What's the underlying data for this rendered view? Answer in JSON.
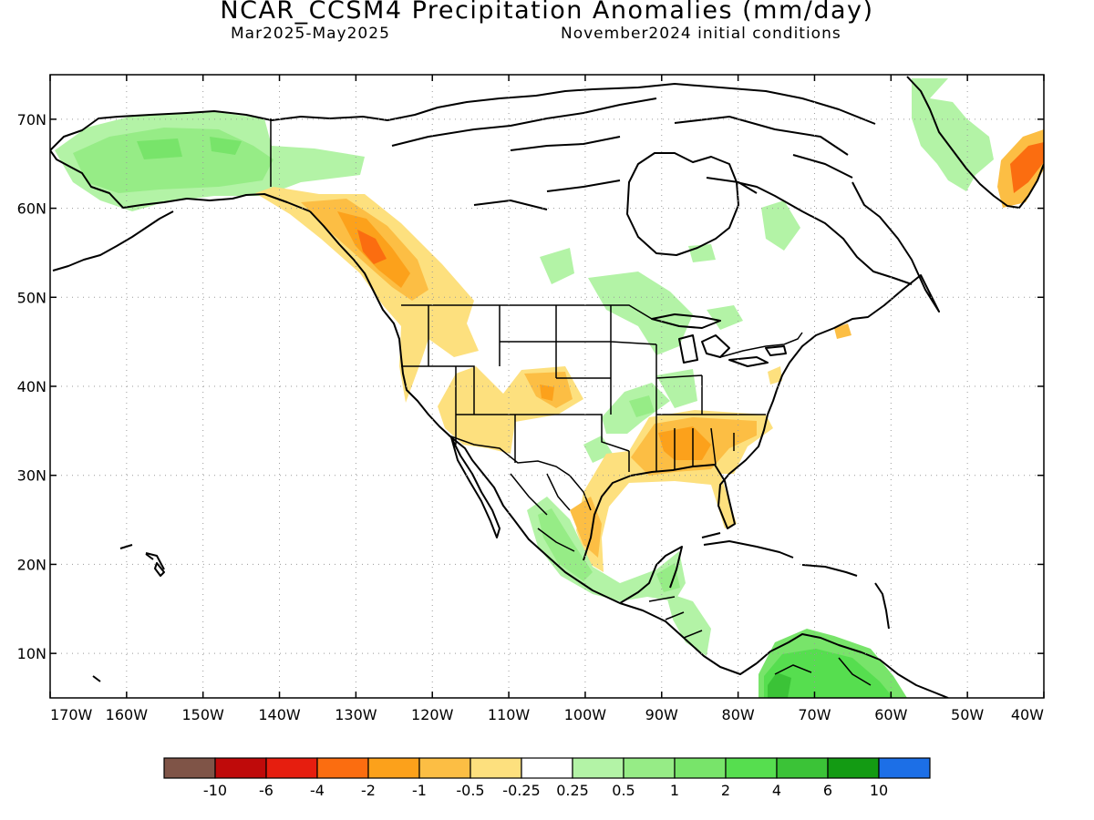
{
  "header": {
    "title": "NCAR_CCSM4 Precipitation Anomalies (mm/day)",
    "period": "Mar2025-May2025",
    "initial_conditions": "November2024 initial conditions"
  },
  "map": {
    "lon_range": [
      -170,
      -40
    ],
    "lat_range": [
      5,
      75
    ],
    "lat_ticks": [
      {
        "value": 70,
        "label": "70N"
      },
      {
        "value": 60,
        "label": "60N"
      },
      {
        "value": 50,
        "label": "50N"
      },
      {
        "value": 40,
        "label": "40N"
      },
      {
        "value": 30,
        "label": "30N"
      },
      {
        "value": 20,
        "label": "20N"
      },
      {
        "value": 10,
        "label": "10N"
      }
    ],
    "lon_ticks": [
      {
        "value": -170,
        "label": "170W"
      },
      {
        "value": -160,
        "label": "160W"
      },
      {
        "value": -150,
        "label": "150W"
      },
      {
        "value": -140,
        "label": "140W"
      },
      {
        "value": -130,
        "label": "130W"
      },
      {
        "value": -120,
        "label": "120W"
      },
      {
        "value": -110,
        "label": "110W"
      },
      {
        "value": -100,
        "label": "100W"
      },
      {
        "value": -90,
        "label": "90W"
      },
      {
        "value": -80,
        "label": "80W"
      },
      {
        "value": -70,
        "label": "70W"
      },
      {
        "value": -60,
        "label": "60W"
      },
      {
        "value": -50,
        "label": "50W"
      },
      {
        "value": -40,
        "label": "40W"
      }
    ],
    "grid": true,
    "anomaly_regions": [
      {
        "label": "Alaska and Yukon wet",
        "colors": [
          "#b3f3a6",
          "#96ec86",
          "#78e46a"
        ]
      },
      {
        "label": "Pacific Northwest and coastal British Columbia dry",
        "colors": [
          "#fde07e",
          "#fcbe44",
          "#fca11b",
          "#fb6d10"
        ]
      },
      {
        "label": "Southwest US dry",
        "colors": [
          "#fde07e",
          "#fcbe44"
        ]
      },
      {
        "label": "Ohio and Tennessee Valley wet",
        "colors": [
          "#b3f3a6",
          "#96ec86"
        ]
      },
      {
        "label": "Southeast US and Gulf Coast dry",
        "colors": [
          "#fde07e",
          "#fcbe44",
          "#fca11b"
        ]
      },
      {
        "label": "Western Mexico and Central America wet",
        "colors": [
          "#b3f3a6",
          "#96ec86",
          "#78e46a"
        ]
      },
      {
        "label": "Northern South America wet",
        "colors": [
          "#78e46a",
          "#56de4f",
          "#3bc337"
        ]
      },
      {
        "label": "Southern Greenland dry",
        "colors": [
          "#fca11b",
          "#fb6d10"
        ]
      }
    ]
  },
  "colorbar": {
    "colors": [
      "#7f5447",
      "#bf0a0a",
      "#e61e0f",
      "#fb6d10",
      "#fca11b",
      "#fcbe44",
      "#fde07e",
      "#ffffff",
      "#b3f3a6",
      "#96ec86",
      "#78e46a",
      "#56de4f",
      "#3bc337",
      "#139b13",
      "#1c6fe7"
    ],
    "labels": [
      "-10",
      "-6",
      "-4",
      "-2",
      "-1",
      "-0.5",
      "-0.25",
      "0.25",
      "0.5",
      "1",
      "2",
      "4",
      "6",
      "10"
    ]
  }
}
